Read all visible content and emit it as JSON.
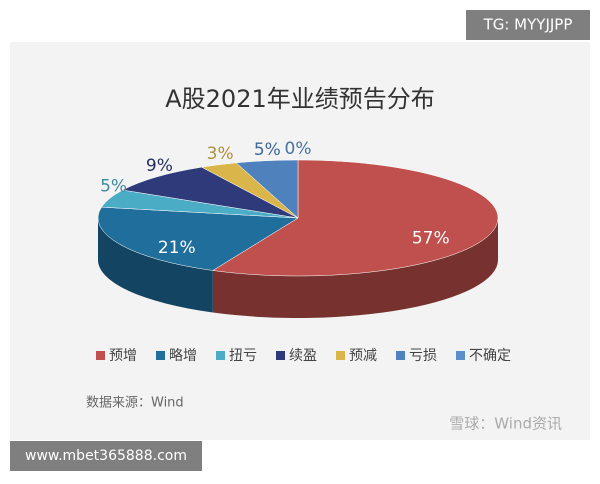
{
  "chart_data": {
    "type": "pie3d",
    "title": "A股2021年业绩预告分布",
    "categories": [
      "预增",
      "略增",
      "扭亏",
      "续盈",
      "预减",
      "亏损",
      "不确定"
    ],
    "values": [
      57,
      21,
      5,
      9,
      3,
      5,
      0
    ],
    "value_labels": [
      "57%",
      "21%",
      "5%",
      "9%",
      "3%",
      "5%",
      "0%"
    ],
    "colors": [
      "#c0504d",
      "#1f6e9c",
      "#4bacc6",
      "#2e3a7a",
      "#d9b54a",
      "#4f81bd",
      "#5b8fc9"
    ],
    "legend": "bottom",
    "source": "数据来源：Wind"
  },
  "overlay": {
    "tag": "TG: MYYJJPP",
    "watermark": "雪球：Wind资讯",
    "site": "www.mbet365888.com"
  }
}
